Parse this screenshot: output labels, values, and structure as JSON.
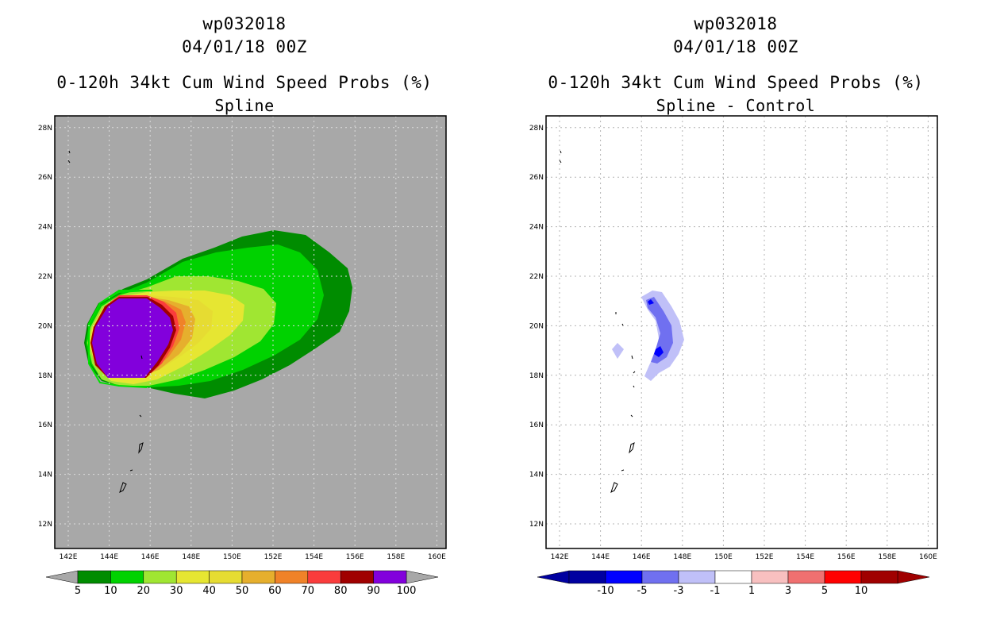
{
  "left_panel": {
    "storm_id": "wp032018",
    "datetime": "04/01/18 00Z",
    "product": "0-120h 34kt Cum Wind Speed Probs (%)",
    "subtitle": "Spline",
    "background_color": "#a8a8a8",
    "colorbar": {
      "colors": [
        "#008c00",
        "#00d200",
        "#a0e632",
        "#e6e632",
        "#e6dc32",
        "#e6af2d",
        "#f08228",
        "#fa3c3c",
        "#a00000",
        "#8200dc"
      ],
      "labels": [
        "5",
        "10",
        "20",
        "30",
        "40",
        "50",
        "60",
        "70",
        "80",
        "90",
        "100"
      ]
    }
  },
  "right_panel": {
    "storm_id": "wp032018",
    "datetime": "04/01/18 00Z",
    "product": "0-120h 34kt Cum Wind Speed Probs (%)",
    "subtitle": "Spline - Control",
    "background_color": "#ffffff",
    "colorbar": {
      "colors": [
        "#0000a0",
        "#0000ff",
        "#7070f0",
        "#c0c0f8",
        "#ffffff",
        "#f8c0c0",
        "#f07070",
        "#ff0000",
        "#a00000"
      ],
      "labels": [
        "-10",
        "-5",
        "-3",
        "-1",
        "1",
        "3",
        "5",
        "10"
      ]
    }
  },
  "map": {
    "lat_labels": [
      "12N",
      "14N",
      "16N",
      "18N",
      "20N",
      "22N",
      "24N",
      "26N",
      "28N"
    ],
    "lon_labels": [
      "142E",
      "144E",
      "146E",
      "148E",
      "150E",
      "152E",
      "154E",
      "156E",
      "158E",
      "160E"
    ]
  }
}
